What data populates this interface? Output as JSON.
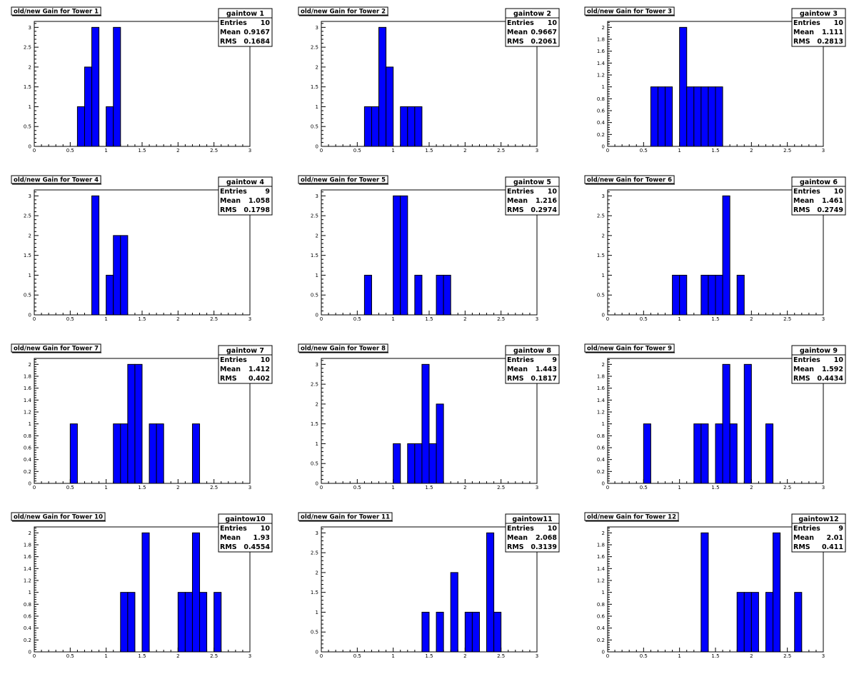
{
  "chart_data": [
    {
      "type": "bar",
      "title": "old/new Gain for Tower 1",
      "stats": {
        "name": "gaintow 1",
        "entries_label": "Entries",
        "entries": "10",
        "mean_label": "Mean",
        "mean": "0.9167",
        "rms_label": "RMS",
        "rms": "0.1684"
      },
      "xlim": [
        0,
        3
      ],
      "bin_width": 0.1,
      "ylim": [
        0,
        3.15
      ],
      "yticks": [
        0,
        0.5,
        1,
        1.5,
        2,
        2.5,
        3
      ],
      "xticks": [
        0,
        0.5,
        1,
        1.5,
        2,
        2.5,
        3
      ],
      "bars": [
        [
          0.6,
          1
        ],
        [
          0.7,
          2
        ],
        [
          0.8,
          3
        ],
        [
          1.0,
          1
        ],
        [
          1.1,
          3
        ]
      ]
    },
    {
      "type": "bar",
      "title": "old/new Gain for Tower 2",
      "stats": {
        "name": "gaintow 2",
        "entries_label": "Entries",
        "entries": "10",
        "mean_label": "Mean",
        "mean": "0.9667",
        "rms_label": "RMS",
        "rms": "0.2061"
      },
      "xlim": [
        0,
        3
      ],
      "bin_width": 0.1,
      "ylim": [
        0,
        3.15
      ],
      "yticks": [
        0,
        0.5,
        1,
        1.5,
        2,
        2.5,
        3
      ],
      "xticks": [
        0,
        0.5,
        1,
        1.5,
        2,
        2.5,
        3
      ],
      "bars": [
        [
          0.6,
          1
        ],
        [
          0.7,
          1
        ],
        [
          0.8,
          3
        ],
        [
          0.9,
          2
        ],
        [
          1.1,
          1
        ],
        [
          1.2,
          1
        ],
        [
          1.3,
          1
        ]
      ]
    },
    {
      "type": "bar",
      "title": "old/new Gain for Tower 3",
      "stats": {
        "name": "gaintow 3",
        "entries_label": "Entries",
        "entries": "10",
        "mean_label": "Mean",
        "mean": "1.111",
        "rms_label": "RMS",
        "rms": "0.2813"
      },
      "xlim": [
        0,
        3
      ],
      "bin_width": 0.1,
      "ylim": [
        0,
        2.1
      ],
      "yticks": [
        0,
        0.2,
        0.4,
        0.6,
        0.8,
        1,
        1.2,
        1.4,
        1.6,
        1.8,
        2
      ],
      "xticks": [
        0,
        0.5,
        1,
        1.5,
        2,
        2.5,
        3
      ],
      "bars": [
        [
          0.6,
          1
        ],
        [
          0.7,
          1
        ],
        [
          0.8,
          1
        ],
        [
          1.0,
          2
        ],
        [
          1.1,
          1
        ],
        [
          1.2,
          1
        ],
        [
          1.3,
          1
        ],
        [
          1.4,
          1
        ],
        [
          1.5,
          1
        ]
      ]
    },
    {
      "type": "bar",
      "title": "old/new Gain for Tower 4",
      "stats": {
        "name": "gaintow 4",
        "entries_label": "Entries",
        "entries": "9",
        "mean_label": "Mean",
        "mean": "1.058",
        "rms_label": "RMS",
        "rms": "0.1798"
      },
      "xlim": [
        0,
        3
      ],
      "bin_width": 0.1,
      "ylim": [
        0,
        3.15
      ],
      "yticks": [
        0,
        0.5,
        1,
        1.5,
        2,
        2.5,
        3
      ],
      "xticks": [
        0,
        0.5,
        1,
        1.5,
        2,
        2.5,
        3
      ],
      "bars": [
        [
          0.8,
          3
        ],
        [
          1.0,
          1
        ],
        [
          1.1,
          2
        ],
        [
          1.2,
          2
        ]
      ]
    },
    {
      "type": "bar",
      "title": "old/new Gain for Tower 5",
      "stats": {
        "name": "gaintow 5",
        "entries_label": "Entries",
        "entries": "10",
        "mean_label": "Mean",
        "mean": "1.216",
        "rms_label": "RMS",
        "rms": "0.2974"
      },
      "xlim": [
        0,
        3
      ],
      "bin_width": 0.1,
      "ylim": [
        0,
        3.15
      ],
      "yticks": [
        0,
        0.5,
        1,
        1.5,
        2,
        2.5,
        3
      ],
      "xticks": [
        0,
        0.5,
        1,
        1.5,
        2,
        2.5,
        3
      ],
      "bars": [
        [
          0.6,
          1
        ],
        [
          1.0,
          3
        ],
        [
          1.1,
          3
        ],
        [
          1.3,
          1
        ],
        [
          1.6,
          1
        ],
        [
          1.7,
          1
        ]
      ]
    },
    {
      "type": "bar",
      "title": "old/new Gain for Tower 6",
      "stats": {
        "name": "gaintow 6",
        "entries_label": "Entries",
        "entries": "10",
        "mean_label": "Mean",
        "mean": "1.461",
        "rms_label": "RMS",
        "rms": "0.2749"
      },
      "xlim": [
        0,
        3
      ],
      "bin_width": 0.1,
      "ylim": [
        0,
        3.15
      ],
      "yticks": [
        0,
        0.5,
        1,
        1.5,
        2,
        2.5,
        3
      ],
      "xticks": [
        0,
        0.5,
        1,
        1.5,
        2,
        2.5,
        3
      ],
      "bars": [
        [
          0.9,
          1
        ],
        [
          1.0,
          1
        ],
        [
          1.3,
          1
        ],
        [
          1.4,
          1
        ],
        [
          1.5,
          1
        ],
        [
          1.6,
          3
        ],
        [
          1.8,
          1
        ]
      ]
    },
    {
      "type": "bar",
      "title": "old/new Gain for Tower 7",
      "stats": {
        "name": "gaintow 7",
        "entries_label": "Entries",
        "entries": "10",
        "mean_label": "Mean",
        "mean": "1.412",
        "rms_label": "RMS",
        "rms": "0.402"
      },
      "xlim": [
        0,
        3
      ],
      "bin_width": 0.1,
      "ylim": [
        0,
        2.1
      ],
      "yticks": [
        0,
        0.2,
        0.4,
        0.6,
        0.8,
        1,
        1.2,
        1.4,
        1.6,
        1.8,
        2
      ],
      "xticks": [
        0,
        0.5,
        1,
        1.5,
        2,
        2.5,
        3
      ],
      "bars": [
        [
          0.5,
          1
        ],
        [
          1.1,
          1
        ],
        [
          1.2,
          1
        ],
        [
          1.3,
          2
        ],
        [
          1.4,
          2
        ],
        [
          1.6,
          1
        ],
        [
          1.7,
          1
        ],
        [
          2.2,
          1
        ]
      ]
    },
    {
      "type": "bar",
      "title": "old/new Gain for Tower 8",
      "stats": {
        "name": "gaintow 8",
        "entries_label": "Entries",
        "entries": "9",
        "mean_label": "Mean",
        "mean": "1.443",
        "rms_label": "RMS",
        "rms": "0.1817"
      },
      "xlim": [
        0,
        3
      ],
      "bin_width": 0.1,
      "ylim": [
        0,
        3.15
      ],
      "yticks": [
        0,
        0.5,
        1,
        1.5,
        2,
        2.5,
        3
      ],
      "xticks": [
        0,
        0.5,
        1,
        1.5,
        2,
        2.5,
        3
      ],
      "bars": [
        [
          1.0,
          1
        ],
        [
          1.2,
          1
        ],
        [
          1.3,
          1
        ],
        [
          1.4,
          3
        ],
        [
          1.5,
          1
        ],
        [
          1.6,
          2
        ]
      ]
    },
    {
      "type": "bar",
      "title": "old/new Gain for Tower 9",
      "stats": {
        "name": "gaintow 9",
        "entries_label": "Entries",
        "entries": "10",
        "mean_label": "Mean",
        "mean": "1.592",
        "rms_label": "RMS",
        "rms": "0.4434"
      },
      "xlim": [
        0,
        3
      ],
      "bin_width": 0.1,
      "ylim": [
        0,
        2.1
      ],
      "yticks": [
        0,
        0.2,
        0.4,
        0.6,
        0.8,
        1,
        1.2,
        1.4,
        1.6,
        1.8,
        2
      ],
      "xticks": [
        0,
        0.5,
        1,
        1.5,
        2,
        2.5,
        3
      ],
      "bars": [
        [
          0.5,
          1
        ],
        [
          1.2,
          1
        ],
        [
          1.3,
          1
        ],
        [
          1.5,
          1
        ],
        [
          1.6,
          2
        ],
        [
          1.7,
          1
        ],
        [
          1.9,
          2
        ],
        [
          2.2,
          1
        ]
      ]
    },
    {
      "type": "bar",
      "title": "old/new Gain for Tower 10",
      "stats": {
        "name": "gaintow10",
        "entries_label": "Entries",
        "entries": "10",
        "mean_label": "Mean",
        "mean": "1.93",
        "rms_label": "RMS",
        "rms": "0.4554"
      },
      "xlim": [
        0,
        3
      ],
      "bin_width": 0.1,
      "ylim": [
        0,
        2.1
      ],
      "yticks": [
        0,
        0.2,
        0.4,
        0.6,
        0.8,
        1,
        1.2,
        1.4,
        1.6,
        1.8,
        2
      ],
      "xticks": [
        0,
        0.5,
        1,
        1.5,
        2,
        2.5,
        3
      ],
      "bars": [
        [
          1.2,
          1
        ],
        [
          1.3,
          1
        ],
        [
          1.5,
          2
        ],
        [
          2.0,
          1
        ],
        [
          2.1,
          1
        ],
        [
          2.2,
          2
        ],
        [
          2.3,
          1
        ],
        [
          2.5,
          1
        ]
      ]
    },
    {
      "type": "bar",
      "title": "old/new Gain for Tower 11",
      "stats": {
        "name": "gaintow11",
        "entries_label": "Entries",
        "entries": "10",
        "mean_label": "Mean",
        "mean": "2.068",
        "rms_label": "RMS",
        "rms": "0.3139"
      },
      "xlim": [
        0,
        3
      ],
      "bin_width": 0.1,
      "ylim": [
        0,
        3.15
      ],
      "yticks": [
        0,
        0.5,
        1,
        1.5,
        2,
        2.5,
        3
      ],
      "xticks": [
        0,
        0.5,
        1,
        1.5,
        2,
        2.5,
        3
      ],
      "bars": [
        [
          1.4,
          1
        ],
        [
          1.6,
          1
        ],
        [
          1.8,
          2
        ],
        [
          2.0,
          1
        ],
        [
          2.1,
          1
        ],
        [
          2.3,
          3
        ],
        [
          2.4,
          1
        ]
      ]
    },
    {
      "type": "bar",
      "title": "old/new Gain for Tower 12",
      "stats": {
        "name": "gaintow12",
        "entries_label": "Entries",
        "entries": "9",
        "mean_label": "Mean",
        "mean": "2.01",
        "rms_label": "RMS",
        "rms": "0.411"
      },
      "xlim": [
        0,
        3
      ],
      "bin_width": 0.1,
      "ylim": [
        0,
        2.1
      ],
      "yticks": [
        0,
        0.2,
        0.4,
        0.6,
        0.8,
        1,
        1.2,
        1.4,
        1.6,
        1.8,
        2
      ],
      "xticks": [
        0,
        0.5,
        1,
        1.5,
        2,
        2.5,
        3
      ],
      "bars": [
        [
          1.3,
          2
        ],
        [
          1.8,
          1
        ],
        [
          1.9,
          1
        ],
        [
          2.0,
          1
        ],
        [
          2.2,
          1
        ],
        [
          2.3,
          2
        ],
        [
          2.6,
          1
        ]
      ]
    }
  ],
  "colors": {
    "bar_fill": "#0000ff",
    "bar_stroke": "#000000",
    "frame": "#000000",
    "background": "#ffffff"
  }
}
